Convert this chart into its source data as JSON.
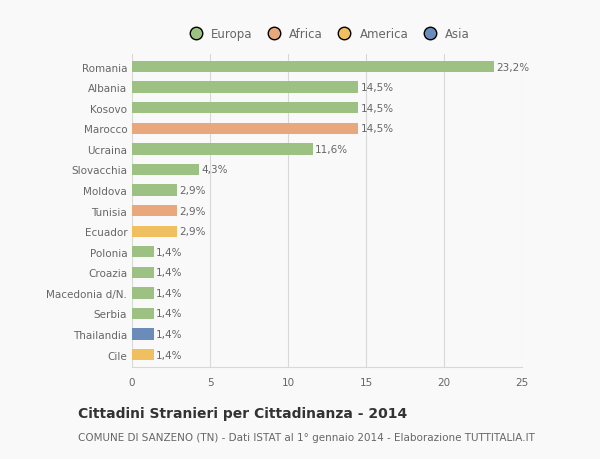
{
  "categories": [
    "Romania",
    "Albania",
    "Kosovo",
    "Marocco",
    "Ucraina",
    "Slovacchia",
    "Moldova",
    "Tunisia",
    "Ecuador",
    "Polonia",
    "Croazia",
    "Macedonia d/N.",
    "Serbia",
    "Thailandia",
    "Cile"
  ],
  "values": [
    23.2,
    14.5,
    14.5,
    14.5,
    11.6,
    4.3,
    2.9,
    2.9,
    2.9,
    1.4,
    1.4,
    1.4,
    1.4,
    1.4,
    1.4
  ],
  "labels": [
    "23,2%",
    "14,5%",
    "14,5%",
    "14,5%",
    "11,6%",
    "4,3%",
    "2,9%",
    "2,9%",
    "2,9%",
    "1,4%",
    "1,4%",
    "1,4%",
    "1,4%",
    "1,4%",
    "1,4%"
  ],
  "colors": [
    "#9dc183",
    "#9dc183",
    "#9dc183",
    "#e8a87c",
    "#9dc183",
    "#9dc183",
    "#9dc183",
    "#e8a87c",
    "#f0c060",
    "#9dc183",
    "#9dc183",
    "#9dc183",
    "#9dc183",
    "#6b8cba",
    "#f0c060"
  ],
  "legend_labels": [
    "Europa",
    "Africa",
    "America",
    "Asia"
  ],
  "legend_colors": [
    "#9dc183",
    "#e8a87c",
    "#f0c060",
    "#6b8cba"
  ],
  "title": "Cittadini Stranieri per Cittadinanza - 2014",
  "subtitle": "COMUNE DI SANZENO (TN) - Dati ISTAT al 1° gennaio 2014 - Elaborazione TUTTITALIA.IT",
  "xlim": [
    0,
    25
  ],
  "xticks": [
    0,
    5,
    10,
    15,
    20,
    25
  ],
  "bg_color": "#f9f9f9",
  "grid_color": "#d8d8d8",
  "bar_height": 0.55,
  "title_fontsize": 10,
  "subtitle_fontsize": 7.5,
  "label_fontsize": 7.5,
  "tick_fontsize": 7.5,
  "legend_fontsize": 8.5
}
